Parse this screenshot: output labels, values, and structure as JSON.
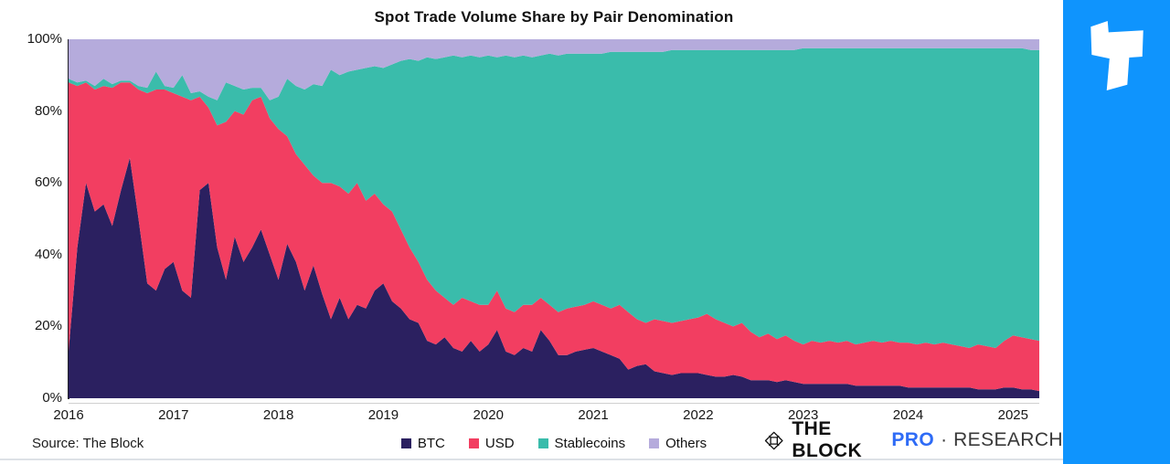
{
  "title": "Spot Trade Volume Share by Pair Denomination",
  "source_note": "Source: The Block",
  "footer": {
    "brand_the_block": "THE BLOCK",
    "brand_pro": "PRO",
    "brand_separator": "·",
    "brand_research": "RESEARCH"
  },
  "colors": {
    "btc": "#2b2060",
    "usd": "#f23e61",
    "stablecoins": "#3abcab",
    "others": "#b5abdc",
    "sidebar_blue": "#0f94fd",
    "pro_blue": "#2e6bf6"
  },
  "chart_data": {
    "type": "area",
    "stacked": true,
    "units": "percent_share",
    "title": "Spot Trade Volume Share by Pair Denomination",
    "x_interval": "monthly",
    "x_start": "2016-01",
    "x_end": "2025-04",
    "x_tick_labels": [
      "2016",
      "2017",
      "2018",
      "2019",
      "2020",
      "2021",
      "2022",
      "2023",
      "2024",
      "2025"
    ],
    "y_tick_labels": [
      "0%",
      "20%",
      "40%",
      "60%",
      "80%",
      "100%"
    ],
    "ylim": [
      0,
      100
    ],
    "legend_position": "bottom",
    "series": [
      {
        "name": "BTC",
        "color": "#2b2060",
        "values": [
          13,
          42,
          60,
          52,
          54,
          48,
          58,
          67,
          50,
          32,
          30,
          36,
          38,
          30,
          28,
          58,
          60,
          42,
          33,
          45,
          38,
          42,
          47,
          40,
          33,
          43,
          38,
          30,
          37,
          29,
          22,
          28,
          22,
          26,
          25,
          30,
          32,
          27,
          25,
          22,
          21,
          16,
          15,
          17,
          14,
          13,
          16,
          13,
          15,
          19,
          13,
          12,
          14,
          13,
          19,
          16,
          12,
          12,
          13,
          13.5,
          14,
          13,
          12,
          11,
          8,
          9,
          9.5,
          7.5,
          7,
          6.5,
          7,
          7,
          7,
          6.5,
          6,
          6,
          6.5,
          6,
          5,
          5,
          5,
          4.5,
          5,
          4.5,
          4,
          4,
          4,
          4,
          4,
          4,
          3.5,
          3.5,
          3.5,
          3.5,
          3.5,
          3.5,
          3,
          3,
          3,
          3,
          3,
          3,
          3,
          3,
          2.5,
          2.5,
          2.5,
          3,
          3,
          2.5,
          2.5,
          2
        ]
      },
      {
        "name": "USD",
        "color": "#f23e61",
        "values": [
          75,
          45,
          28,
          34,
          33,
          38.5,
          30,
          21,
          36,
          53,
          56,
          50,
          47,
          54,
          55,
          26,
          21,
          34,
          44,
          35,
          41,
          41,
          37,
          38,
          42,
          30,
          30,
          35,
          25,
          31,
          38,
          31,
          35,
          34,
          30,
          27,
          22,
          25,
          22,
          20,
          17,
          17,
          15,
          11,
          12,
          15,
          11,
          13,
          11,
          11,
          12,
          12,
          12,
          13,
          9,
          10,
          12,
          13,
          12.5,
          12.5,
          13,
          13,
          13,
          15,
          16,
          13,
          11.5,
          14.5,
          14.5,
          14.5,
          14.5,
          15,
          15.5,
          17,
          16,
          15,
          13.5,
          15,
          13.5,
          12,
          13,
          12,
          12.5,
          11.5,
          11,
          12,
          11.5,
          12,
          11.5,
          12,
          11.5,
          12,
          12.5,
          12,
          12.5,
          12,
          12.5,
          12,
          12.5,
          12,
          12.5,
          12,
          11.5,
          11,
          12.5,
          12,
          11.5,
          13,
          14.5,
          14.5,
          14,
          14
        ]
      },
      {
        "name": "Stablecoins",
        "color": "#3abcab",
        "values": [
          1,
          1,
          0.5,
          1,
          2,
          1,
          0.5,
          0.5,
          1,
          1.5,
          5,
          1,
          1.5,
          6,
          2,
          1.5,
          3,
          7,
          11,
          7,
          7,
          3.5,
          2.5,
          5,
          9,
          16,
          19,
          21,
          25.5,
          27,
          31.5,
          31,
          34,
          31.5,
          37,
          35.5,
          38,
          41,
          47,
          52.5,
          56,
          62,
          64.5,
          67,
          69.5,
          67,
          68.5,
          69,
          69.5,
          65,
          70.5,
          71,
          69.5,
          69,
          67.5,
          70,
          71.5,
          71,
          70.5,
          70,
          69,
          70,
          71.5,
          70.5,
          72.5,
          74.5,
          75.5,
          74.5,
          75,
          76,
          75.5,
          75,
          74.5,
          73.5,
          75,
          76,
          77,
          76,
          78.5,
          80,
          79,
          80.5,
          79.5,
          81,
          82.5,
          81.5,
          82,
          81.5,
          82,
          81.5,
          82.5,
          82,
          81.5,
          82,
          81.5,
          82,
          82,
          82.5,
          82,
          82.5,
          82,
          82.5,
          83,
          83.5,
          82.5,
          83,
          83.5,
          81.5,
          80,
          80.5,
          80.5,
          81
        ]
      },
      {
        "name": "Others",
        "color": "#b5abdc",
        "values": [
          11,
          12,
          11.5,
          13,
          11,
          12.5,
          11.5,
          11.5,
          13,
          13.5,
          9,
          13,
          13.5,
          10,
          15,
          14.5,
          16,
          17,
          12,
          13,
          14,
          13.5,
          13.5,
          17,
          16,
          11,
          13,
          14,
          12.5,
          13,
          8.5,
          10,
          9,
          8.5,
          8,
          7.5,
          8,
          7,
          6,
          5.5,
          6,
          5,
          5.5,
          5,
          4.5,
          5,
          4.5,
          5,
          4.5,
          5,
          4.5,
          5,
          4.5,
          5,
          4.5,
          4,
          4.5,
          4,
          4,
          4,
          4,
          4,
          3.5,
          3.5,
          3.5,
          3.5,
          3.5,
          3.5,
          3.5,
          3,
          3,
          3,
          3,
          3,
          3,
          3,
          3,
          3,
          3,
          3,
          3,
          3,
          3,
          3,
          2.5,
          2.5,
          2.5,
          2.5,
          2.5,
          2.5,
          2.5,
          2.5,
          2.5,
          2.5,
          2.5,
          2.5,
          2.5,
          2.5,
          2.5,
          2.5,
          2.5,
          2.5,
          2.5,
          2.5,
          2.5,
          2.5,
          2.5,
          2.5,
          2.5,
          2.5,
          3,
          3
        ]
      }
    ]
  }
}
